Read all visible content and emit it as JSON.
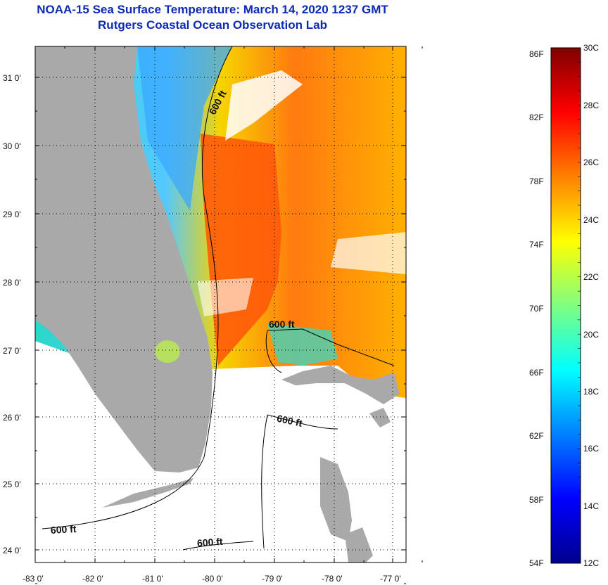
{
  "title_line1": "NOAA-15 Sea Surface Temperature:  March 14, 2020 1237 GMT",
  "title_line2": "Rutgers Coastal Ocean Observation Lab",
  "map": {
    "lat_ticks": [
      "31 0'",
      "30 0'",
      "29 0'",
      "28 0'",
      "27 0'",
      "26 0'",
      "25 0'",
      "24 0'"
    ],
    "lon_ticks": [
      "-83 0'",
      "-82 0'",
      "-81 0'",
      "-80 0'",
      "-79 0'",
      "-78 0'",
      "-77 0'"
    ],
    "contour_labels": [
      "600 ft",
      "600 ft",
      "600 ft",
      "600 ft",
      "600 ft"
    ],
    "colors": {
      "land": "#a9a9a9",
      "cloud": "#ffffff",
      "frame": "#000000"
    }
  },
  "colorbar": {
    "fahrenheit_labels": [
      "86F",
      "82F",
      "78F",
      "74F",
      "70F",
      "66F",
      "62F",
      "58F",
      "54F"
    ],
    "celsius_labels": [
      "30C",
      "28C",
      "26C",
      "24C",
      "22C",
      "20C",
      "18C",
      "16C",
      "14C",
      "12C"
    ],
    "range_c": [
      12,
      30
    ],
    "colors_low_to_high": [
      "#00008f",
      "#0000ff",
      "#0080ff",
      "#00ffff",
      "#80ff80",
      "#ffff00",
      "#ff8000",
      "#ff0000",
      "#800000"
    ]
  }
}
